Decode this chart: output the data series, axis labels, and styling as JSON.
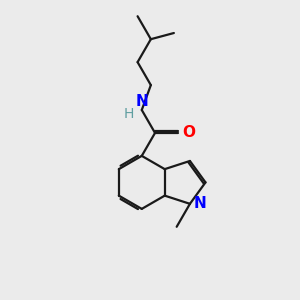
{
  "bg_color": "#ebebeb",
  "bond_color": "#1a1a1a",
  "bond_width": 1.6,
  "dbo": 0.07,
  "atom_colors": {
    "N": "#0000ff",
    "O": "#ff0000",
    "H": "#5f9ea0"
  },
  "font_size": 11
}
